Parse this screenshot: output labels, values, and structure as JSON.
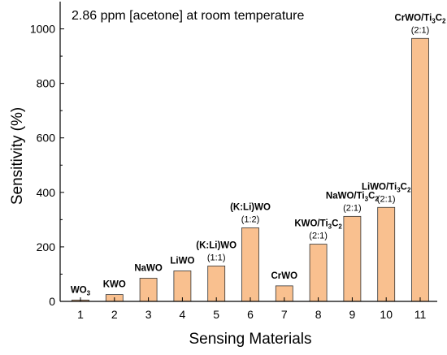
{
  "chart_data": {
    "type": "bar",
    "title": "2.86 ppm [acetone] at room temperature",
    "xlabel": "Sensing Materials",
    "ylabel": "Sensitivity (%)",
    "ylim": [
      0,
      1100
    ],
    "yticks": [
      0,
      200,
      400,
      600,
      800,
      1000
    ],
    "categories": [
      "1",
      "2",
      "3",
      "4",
      "5",
      "6",
      "7",
      "8",
      "9",
      "10",
      "11"
    ],
    "values": [
      5,
      25,
      85,
      112,
      130,
      270,
      57,
      210,
      312,
      345,
      965
    ],
    "bar_labels": [
      {
        "main": "WO",
        "sub": "3",
        "tail": "",
        "ratio": ""
      },
      {
        "main": "KWO",
        "sub": "",
        "tail": "",
        "ratio": ""
      },
      {
        "main": "NaWO",
        "sub": "",
        "tail": "",
        "ratio": ""
      },
      {
        "main": "LiWO",
        "sub": "",
        "tail": "",
        "ratio": ""
      },
      {
        "main": "(K:Li)WO",
        "sub": "",
        "tail": "",
        "ratio": "(1:1)"
      },
      {
        "main": "(K:Li)WO",
        "sub": "",
        "tail": "",
        "ratio": "(1:2)"
      },
      {
        "main": "CrWO",
        "sub": "",
        "tail": "",
        "ratio": ""
      },
      {
        "main": "KWO/Ti",
        "sub": "3",
        "tail": "C2",
        "ratio": "(2:1)"
      },
      {
        "main": "NaWO/Ti",
        "sub": "3",
        "tail": "C2",
        "ratio": "(2:1)"
      },
      {
        "main": "LiWO/Ti",
        "sub": "3",
        "tail": "C2",
        "ratio": "(2:1)"
      },
      {
        "main": "CrWO/Ti",
        "sub": "3",
        "tail": "C2",
        "ratio": "(2:1)"
      }
    ],
    "bar_color": "#f9c08f",
    "bar_edge": "#333333",
    "grid": false,
    "legend": "none"
  }
}
